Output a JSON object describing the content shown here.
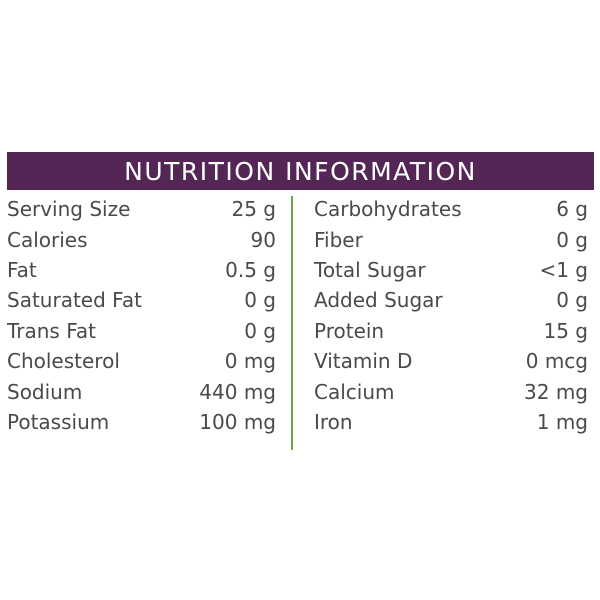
{
  "title": "NUTRITION INFORMATION",
  "colors": {
    "header_bg": "#542656",
    "divider": "#6aa84f",
    "text": "#4a4a4a"
  },
  "left_column": [
    {
      "label": "Serving Size",
      "value": "25 g"
    },
    {
      "label": "Calories",
      "value": "90"
    },
    {
      "label": "Fat",
      "value": "0.5 g"
    },
    {
      "label": "Saturated Fat",
      "value": "0 g"
    },
    {
      "label": "Trans Fat",
      "value": "0 g"
    },
    {
      "label": "Cholesterol",
      "value": "0 mg"
    },
    {
      "label": "Sodium",
      "value": "440 mg"
    },
    {
      "label": "Potassium",
      "value": "100 mg"
    }
  ],
  "right_column": [
    {
      "label": "Carbohydrates",
      "value": "6 g"
    },
    {
      "label": "Fiber",
      "value": "0 g"
    },
    {
      "label": "Total Sugar",
      "value": "<1 g"
    },
    {
      "label": "Added Sugar",
      "value": "0 g"
    },
    {
      "label": "Protein",
      "value": "15 g"
    },
    {
      "label": "Vitamin D",
      "value": "0 mcg"
    },
    {
      "label": "Calcium",
      "value": "32 mg"
    },
    {
      "label": "Iron",
      "value": "1 mg"
    }
  ]
}
